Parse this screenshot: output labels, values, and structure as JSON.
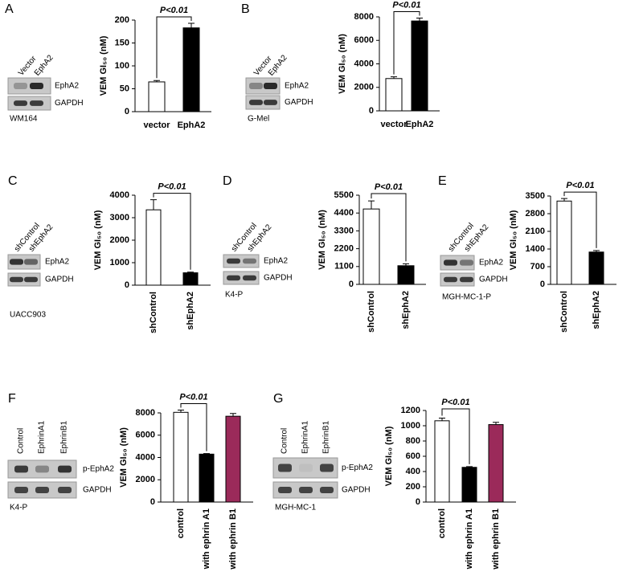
{
  "chart_data": [
    {
      "type": "bar",
      "panel": "A",
      "ylabel": "VEM GI₅₀ (nM)",
      "annotation": "P<0.01",
      "categories": [
        "vector",
        "EphA2"
      ],
      "values": [
        65,
        183
      ],
      "errors": [
        3,
        10
      ],
      "colors": [
        "#ffffff",
        "#000000"
      ],
      "ylim": [
        0,
        200
      ],
      "yticks": [
        0,
        50,
        100,
        150,
        200
      ],
      "lanes": [
        "Vector",
        "EphA2"
      ],
      "blots": [
        "EphA2",
        "GAPDH"
      ],
      "cell_line": "WM164"
    },
    {
      "type": "bar",
      "panel": "B",
      "ylabel": "VEM GI₅₀ (nM)",
      "annotation": "P<0.01",
      "categories": [
        "vector",
        "EphA2"
      ],
      "values": [
        2750,
        7650
      ],
      "errors": [
        150,
        250
      ],
      "colors": [
        "#ffffff",
        "#000000"
      ],
      "ylim": [
        0,
        8000
      ],
      "yticks": [
        0,
        2000,
        4000,
        6000,
        8000
      ],
      "lanes": [
        "Vector",
        "EphA2"
      ],
      "blots": [
        "EphA2",
        "GAPDH"
      ],
      "cell_line": "G-Mel"
    },
    {
      "type": "bar",
      "panel": "C",
      "ylabel": "VEM GI₅₀ (nM)",
      "annotation": "P<0.01",
      "categories": [
        "shControl",
        "shEphA2"
      ],
      "values": [
        3350,
        550
      ],
      "errors": [
        450,
        30
      ],
      "colors": [
        "#ffffff",
        "#000000"
      ],
      "ylim": [
        0,
        4000
      ],
      "yticks": [
        0,
        1000,
        2000,
        3000,
        4000
      ],
      "lanes": [
        "shControl",
        "shEphA2"
      ],
      "blots": [
        "EphA2",
        "GAPDH"
      ],
      "cell_line": "UACC903"
    },
    {
      "type": "bar",
      "panel": "D",
      "ylabel": "VEM GI₅₀ (nM)",
      "annotation": "P<0.01",
      "categories": [
        "shControl",
        "shEphA2"
      ],
      "values": [
        4650,
        1150
      ],
      "errors": [
        500,
        120
      ],
      "colors": [
        "#ffffff",
        "#000000"
      ],
      "ylim": [
        0,
        5500
      ],
      "yticks": [
        0,
        1100,
        2200,
        3300,
        4400,
        5500
      ],
      "lanes": [
        "shControl",
        "shEphA2"
      ],
      "blots": [
        "EphA2",
        "GAPDH"
      ],
      "cell_line": "K4-P"
    },
    {
      "type": "bar",
      "panel": "E",
      "ylabel": "VEM GI₅₀ (nM)",
      "annotation": "P<0.01",
      "categories": [
        "shControl",
        "shEphA2"
      ],
      "values": [
        3300,
        1280
      ],
      "errors": [
        100,
        60
      ],
      "colors": [
        "#ffffff",
        "#000000"
      ],
      "ylim": [
        0,
        3500
      ],
      "yticks": [
        0,
        700,
        1400,
        2100,
        2800,
        3500
      ],
      "lanes": [
        "shControl",
        "shEphA2"
      ],
      "blots": [
        "EphA2",
        "GAPDH"
      ],
      "cell_line": "MGH-MC-1-P"
    },
    {
      "type": "bar",
      "panel": "F",
      "ylabel": "VEM GI₅₀ (nM)",
      "annotation": "P<0.01",
      "categories": [
        "control",
        "with ephrin A1",
        "with ephrin B1"
      ],
      "values": [
        8050,
        4300,
        7700
      ],
      "errors": [
        200,
        50,
        250
      ],
      "colors": [
        "#ffffff",
        "#000000",
        "#9b2a5a"
      ],
      "ylim": [
        0,
        8000
      ],
      "yticks": [
        0,
        2000,
        4000,
        6000,
        8000
      ],
      "lanes": [
        "Control",
        "EphrinA1",
        "EphrinB1"
      ],
      "blots": [
        "p-EphA2",
        "GAPDH"
      ],
      "cell_line": "K4-P"
    },
    {
      "type": "bar",
      "panel": "G",
      "ylabel": "VEM GI₅₀ (nM)",
      "annotation": "P<0.01",
      "categories": [
        "control",
        "with ephrin A1",
        "with ephrin B1"
      ],
      "values": [
        1065,
        455,
        1015
      ],
      "errors": [
        35,
        10,
        30
      ],
      "colors": [
        "#ffffff",
        "#000000",
        "#9b2a5a"
      ],
      "ylim": [
        0,
        1200
      ],
      "yticks": [
        0,
        200,
        400,
        600,
        800,
        1000,
        1200
      ],
      "lanes": [
        "Control",
        "EphrinA1",
        "EphrinB1"
      ],
      "blots": [
        "p-EphA2",
        "GAPDH"
      ],
      "cell_line": "MGH-MC-1"
    }
  ]
}
